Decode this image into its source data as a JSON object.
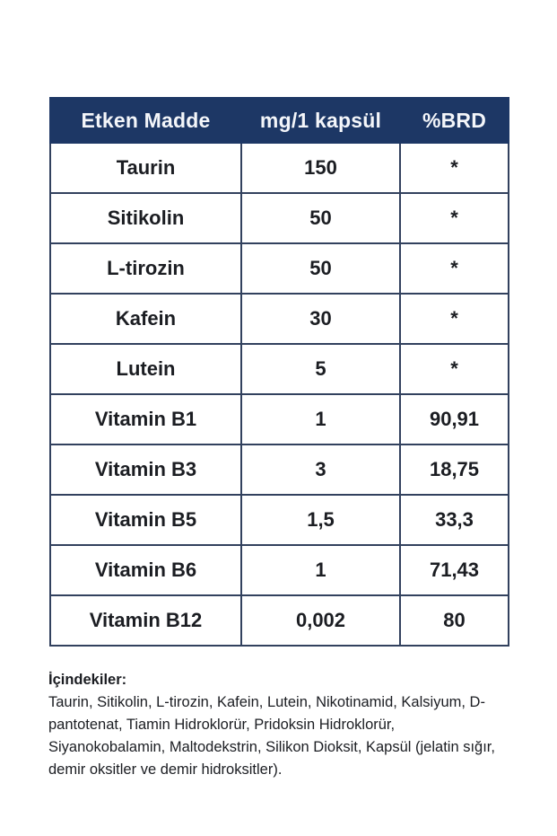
{
  "table": {
    "headers": [
      "Etken Madde",
      "mg/1 kapsül",
      "%BRD"
    ],
    "rows": [
      [
        "Taurin",
        "150",
        "*"
      ],
      [
        "Sitikolin",
        "50",
        "*"
      ],
      [
        "L-tirozin",
        "50",
        "*"
      ],
      [
        "Kafein",
        "30",
        "*"
      ],
      [
        "Lutein",
        "5",
        "*"
      ],
      [
        "Vitamin B1",
        "1",
        "90,91"
      ],
      [
        "Vitamin B3",
        "3",
        "18,75"
      ],
      [
        "Vitamin B5",
        "1,5",
        "33,3"
      ],
      [
        "Vitamin B6",
        "1",
        "71,43"
      ],
      [
        "Vitamin B12",
        "0,002",
        "80"
      ]
    ]
  },
  "footer": {
    "label": "İçindekiler:",
    "text": "Taurin, Sitikolin, L-tirozin, Kafein, Lutein, Nikotinamid, Kalsiyum, D-pantotenat, Tiamin Hidroklorür, Pridoksin Hidroklorür, Siyanokobalamin, Maltodekstrin, Silikon Dioksit, Kapsül (jelatin sığır, demir oksitler ve demir hidroksitler)."
  },
  "colors": {
    "header_bg": "#1d3765",
    "border": "#32415e",
    "text": "#1b1d22",
    "header_text": "#f4f6fa"
  }
}
